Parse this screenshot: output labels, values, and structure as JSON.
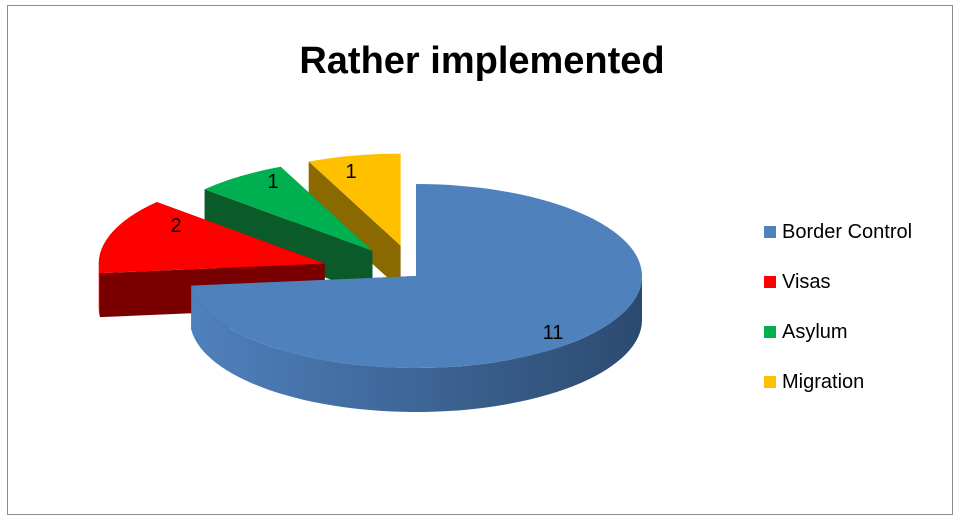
{
  "chart_data": {
    "type": "pie",
    "title": "Rather implemented",
    "categories": [
      "Border Control",
      "Visas",
      "Asylum",
      "Migration"
    ],
    "values": [
      11,
      2,
      1,
      1
    ],
    "data_labels": [
      "11",
      "2",
      "1",
      "1"
    ],
    "colors": [
      "#4f81bd",
      "#ff0000",
      "#00b050",
      "#ffc000"
    ],
    "side_colors": [
      "#2c4a70",
      "#7a0000",
      "#0b5a2a",
      "#8a6a00"
    ],
    "three_d": true,
    "exploded": true,
    "legend_position": "right"
  },
  "chart": {
    "title": "Rather implemented"
  },
  "legend": {
    "items": [
      {
        "label": "Border Control",
        "color": "#4f81bd"
      },
      {
        "label": "Visas",
        "color": "#ff0000"
      },
      {
        "label": "Asylum",
        "color": "#00b050"
      },
      {
        "label": "Migration",
        "color": "#ffc000"
      }
    ]
  }
}
